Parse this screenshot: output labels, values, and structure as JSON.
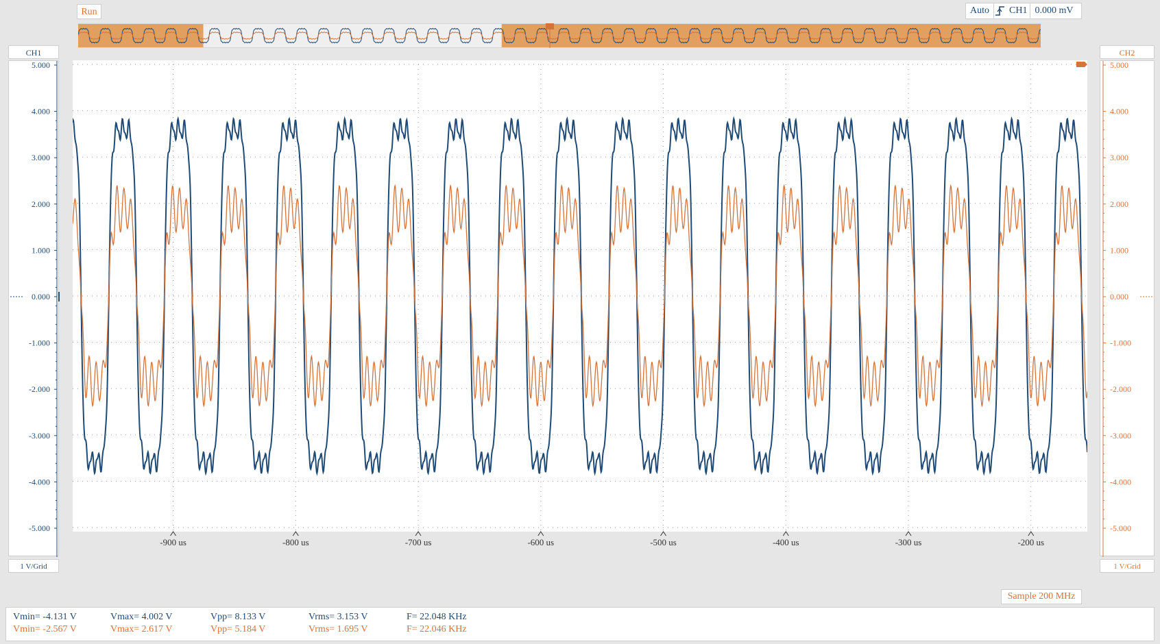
{
  "status": {
    "run_label": "Run"
  },
  "trigger": {
    "mode": "Auto",
    "edge_icon": "rising-edge-icon",
    "source": "CH1",
    "level": "0.000 mV"
  },
  "channels": {
    "ch1": {
      "label": "CH1",
      "vdiv": "1 V/Grid",
      "color": "#1f4a75"
    },
    "ch2": {
      "label": "CH2",
      "vdiv": "1 V/Grid",
      "color": "#d4733a"
    }
  },
  "sample_rate": "Sample 200 MHz",
  "measurements": {
    "ch1": {
      "vmin": "Vmin= -4.131 V",
      "vmax": "Vmax= 4.002 V",
      "vpp": "Vpp= 8.133 V",
      "vrms": "Vrms= 3.153 V",
      "freq": "F= 22.048 KHz"
    },
    "ch2": {
      "vmin": "Vmin= -2.567 V",
      "vmax": "Vmax= 2.617 V",
      "vpp": "Vpp= 5.184 V",
      "vrms": "Vrms= 1.695 V",
      "freq": "F= 22.046 KHz"
    }
  },
  "chart_data": {
    "type": "line",
    "x_unit": "us",
    "xlim": [
      -982,
      -154
    ],
    "ylim": [
      -5,
      5
    ],
    "x_tick_labels": [
      "-900 us",
      "-800 us",
      "-700 us",
      "-600 us",
      "-500 us",
      "-400 us",
      "-300 us",
      "-200 us"
    ],
    "x_tick_values": [
      -900,
      -800,
      -700,
      -600,
      -500,
      -400,
      -300,
      -200
    ],
    "y_tick_labels": [
      "5.000",
      "4.000",
      "3.000",
      "2.000",
      "1.000",
      "0.000",
      "-1.000",
      "-2.000",
      "-3.000",
      "-4.000",
      "-5.000"
    ],
    "y_tick_values": [
      5,
      4,
      3,
      2,
      1,
      0,
      -1,
      -2,
      -3,
      -4,
      -5
    ],
    "grid": true,
    "series": [
      {
        "name": "CH1",
        "color": "#1f4a75",
        "frequency_khz": 22.048,
        "amplitude_v": 4.0,
        "min_v": -4.131,
        "max_v": 4.002
      },
      {
        "name": "CH2",
        "color": "#d4733a",
        "frequency_khz": 22.046,
        "amplitude_v": 2.2,
        "min_v": -2.567,
        "max_v": 2.617
      }
    ],
    "overview_highlight": [
      [
        0,
        0.13
      ],
      [
        0.44,
        1.0
      ]
    ]
  }
}
